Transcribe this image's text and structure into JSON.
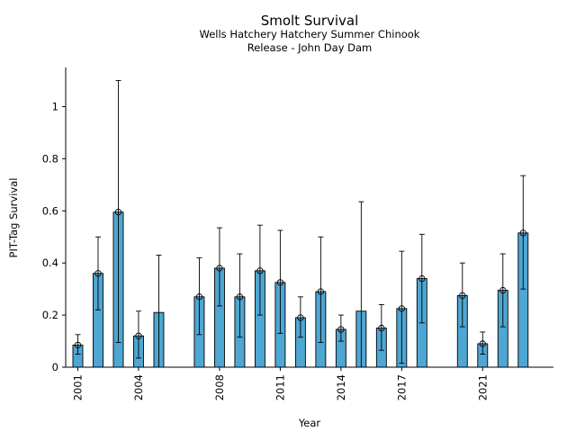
{
  "chart_data": {
    "type": "bar",
    "title": "Smolt Survival",
    "subtitle_lines": [
      "Wells Hatchery Hatchery Summer Chinook",
      "Release - John Day Dam"
    ],
    "xlabel": "Year",
    "ylabel": "PIT-Tag Survival",
    "ylim": [
      0,
      1.15
    ],
    "xlim": [
      2000.4,
      2024.5
    ],
    "y_ticks": [
      0,
      0.2,
      0.4,
      0.6,
      0.8,
      1
    ],
    "y_tick_labels": [
      "0",
      "0.2",
      "0.4",
      "0.6",
      "0.8",
      "1"
    ],
    "x_ticks": [
      2001,
      2004,
      2008,
      2011,
      2014,
      2017,
      2021
    ],
    "x_tick_labels": [
      "2001",
      "2004",
      "2008",
      "2011",
      "2014",
      "2017",
      "2021"
    ],
    "bar_color": "#4ea6d3",
    "grid": false,
    "points": [
      {
        "year": 2001,
        "value": 0.085,
        "lower": 0.05,
        "upper": 0.125,
        "marker": true
      },
      {
        "year": 2002,
        "value": 0.36,
        "lower": 0.22,
        "upper": 0.5,
        "marker": true
      },
      {
        "year": 2003,
        "value": 0.595,
        "lower": 0.095,
        "upper": 1.1,
        "marker": true
      },
      {
        "year": 2004,
        "value": 0.12,
        "lower": 0.035,
        "upper": 0.215,
        "marker": true
      },
      {
        "year": 2005,
        "value": 0.21,
        "lower": 0.0,
        "upper": 0.43,
        "marker": false
      },
      {
        "year": 2007,
        "value": 0.27,
        "lower": 0.125,
        "upper": 0.42,
        "marker": true
      },
      {
        "year": 2008,
        "value": 0.38,
        "lower": 0.235,
        "upper": 0.535,
        "marker": true
      },
      {
        "year": 2009,
        "value": 0.27,
        "lower": 0.115,
        "upper": 0.435,
        "marker": true
      },
      {
        "year": 2010,
        "value": 0.37,
        "lower": 0.2,
        "upper": 0.545,
        "marker": true
      },
      {
        "year": 2011,
        "value": 0.325,
        "lower": 0.13,
        "upper": 0.525,
        "marker": true
      },
      {
        "year": 2012,
        "value": 0.19,
        "lower": 0.115,
        "upper": 0.27,
        "marker": true
      },
      {
        "year": 2013,
        "value": 0.29,
        "lower": 0.095,
        "upper": 0.5,
        "marker": true
      },
      {
        "year": 2014,
        "value": 0.145,
        "lower": 0.1,
        "upper": 0.2,
        "marker": true
      },
      {
        "year": 2015,
        "value": 0.215,
        "lower": 0.0,
        "upper": 0.635,
        "marker": false
      },
      {
        "year": 2016,
        "value": 0.15,
        "lower": 0.065,
        "upper": 0.24,
        "marker": true
      },
      {
        "year": 2017,
        "value": 0.225,
        "lower": 0.015,
        "upper": 0.445,
        "marker": true
      },
      {
        "year": 2018,
        "value": 0.34,
        "lower": 0.17,
        "upper": 0.51,
        "marker": true
      },
      {
        "year": 2020,
        "value": 0.275,
        "lower": 0.155,
        "upper": 0.4,
        "marker": true
      },
      {
        "year": 2021,
        "value": 0.09,
        "lower": 0.05,
        "upper": 0.135,
        "marker": true
      },
      {
        "year": 2022,
        "value": 0.295,
        "lower": 0.155,
        "upper": 0.435,
        "marker": true
      },
      {
        "year": 2023,
        "value": 0.515,
        "lower": 0.3,
        "upper": 0.735,
        "marker": true
      }
    ]
  }
}
